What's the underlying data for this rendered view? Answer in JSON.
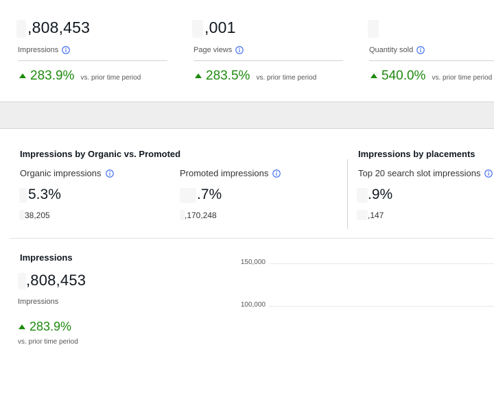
{
  "top_metrics": [
    {
      "value": ",808,453",
      "label": "Impressions",
      "delta": "283.9%",
      "note": "vs. prior time period"
    },
    {
      "value": ",001",
      "label": "Page views",
      "delta": "283.5%",
      "note": "vs. prior time period"
    },
    {
      "value": "",
      "label": "Quantity sold",
      "delta": "540.0%",
      "note": "vs. prior time period"
    }
  ],
  "organic_vs_promoted": {
    "title": "Impressions by Organic vs. Promoted",
    "organic": {
      "label": "Organic impressions",
      "pct": "5.3%",
      "count": "38,205"
    },
    "promoted": {
      "label": "Promoted impressions",
      "pct": ".7%",
      "count": ",170,248"
    }
  },
  "placements": {
    "title": "Impressions by placements",
    "top20": {
      "label": "Top 20 search slot impressions",
      "pct": ".9%",
      "count": ",147"
    }
  },
  "impressions_panel": {
    "title": "Impressions",
    "value": ",808,453",
    "label": "Impressions",
    "delta": "283.9%",
    "note": "vs. prior time period"
  },
  "chart": {
    "y_ticks": [
      "150,000",
      "100,000"
    ]
  },
  "colors": {
    "positive": "#1e8a0e",
    "info_icon": "#3665f3"
  },
  "icons": {
    "info": "info-circle-icon",
    "up": "triangle-up-icon"
  }
}
